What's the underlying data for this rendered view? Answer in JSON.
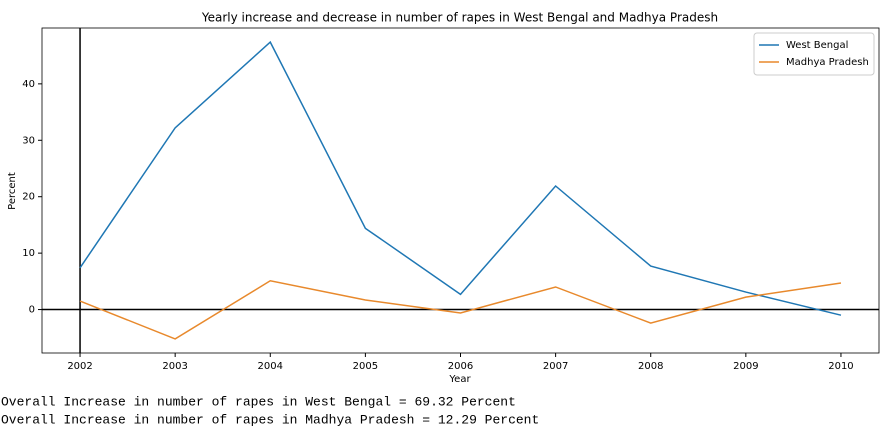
{
  "chart_data": {
    "type": "line",
    "title": "Yearly increase and decrease in number of rapes in West Bengal and Madhya Pradesh",
    "xlabel": "Year",
    "ylabel": "Percent",
    "x": [
      2002,
      2003,
      2004,
      2005,
      2006,
      2007,
      2008,
      2009,
      2010
    ],
    "series": [
      {
        "name": "West Bengal",
        "color": "#1f77b4",
        "values": [
          7.4,
          32.2,
          47.4,
          14.4,
          2.7,
          21.9,
          7.7,
          3.1,
          -1.0
        ]
      },
      {
        "name": "Madhya Pradesh",
        "color": "#e8892c",
        "values": [
          1.5,
          -5.2,
          5.1,
          1.7,
          -0.6,
          4.0,
          -2.4,
          2.2,
          4.7
        ]
      }
    ],
    "xlim": [
      2001.6,
      2010.4
    ],
    "ylim": [
      -7.7,
      49.9
    ],
    "xticks": [
      2002,
      2003,
      2004,
      2005,
      2006,
      2007,
      2008,
      2009,
      2010
    ],
    "yticks": [
      0,
      10,
      20,
      30,
      40
    ],
    "axhline": 0,
    "axvline": 2002,
    "grid": false,
    "legend": "upper right"
  },
  "output": [
    "Overall Increase in number of rapes in West Bengal = 69.32 Percent",
    "Overall Increase in number of rapes in Madhya Pradesh = 12.29 Percent"
  ]
}
